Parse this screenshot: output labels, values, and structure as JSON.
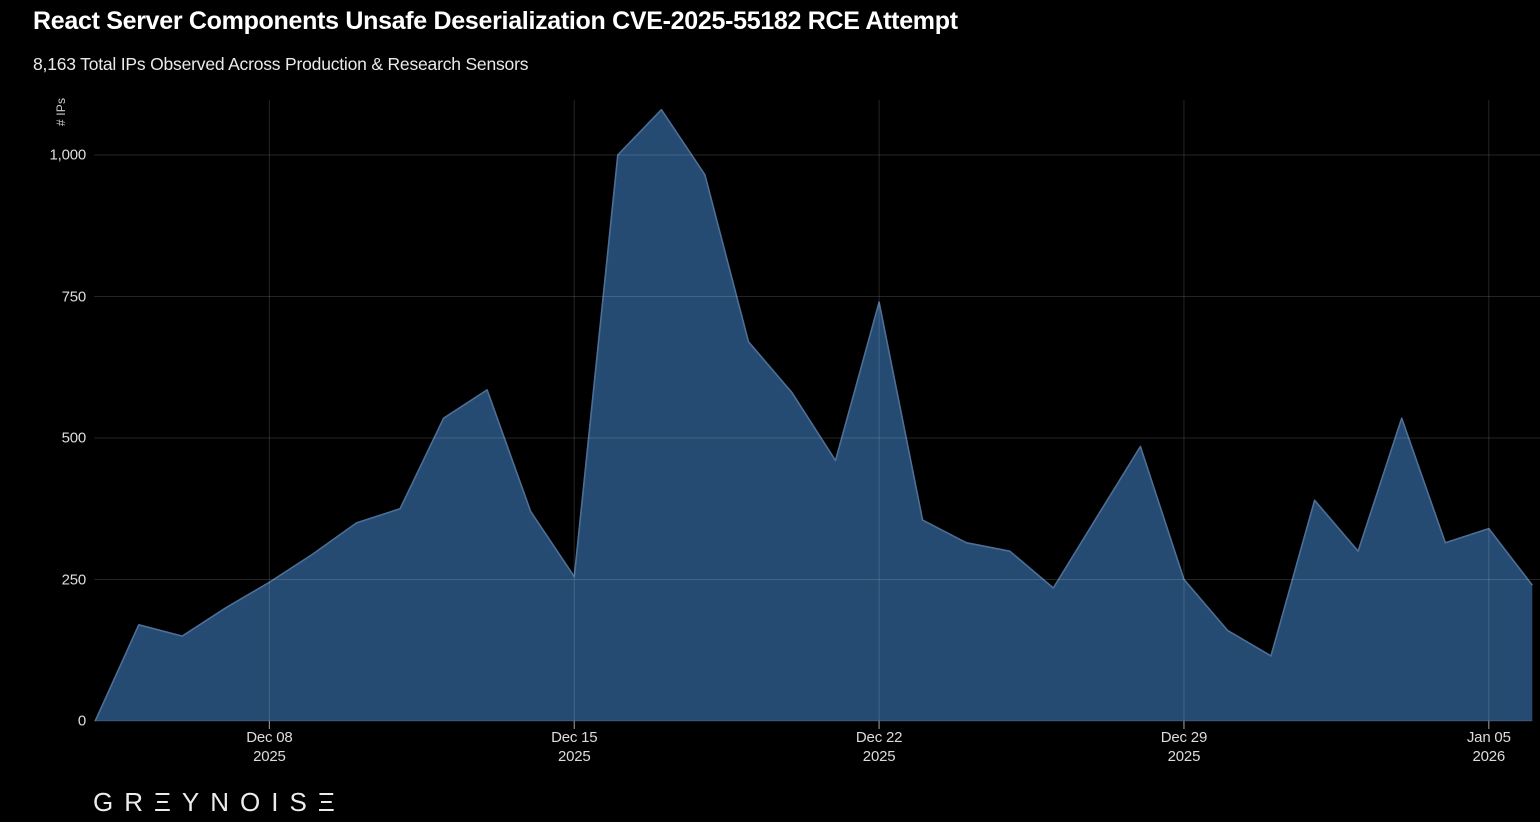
{
  "header": {
    "title": "React Server Components Unsafe Deserialization CVE-2025-55182 RCE Attempt",
    "subtitle": "8,163 Total IPs Observed Across Production & Research Sensors"
  },
  "chart_data": {
    "type": "area",
    "title": "React Server Components Unsafe Deserialization CVE-2025-55182 RCE Attempt",
    "subtitle": "8,163 Total IPs Observed Across Production & Research Sensors",
    "series_name": "# IPs",
    "ylabel": "# IPs",
    "xlabel": "",
    "legend": "none",
    "grid": true,
    "ylim": [
      0,
      1100
    ],
    "x": [
      "Dec 04",
      "Dec 05",
      "Dec 06",
      "Dec 07",
      "Dec 08",
      "Dec 09",
      "Dec 10",
      "Dec 11",
      "Dec 12",
      "Dec 13",
      "Dec 14",
      "Dec 15",
      "Dec 16",
      "Dec 17",
      "Dec 18",
      "Dec 19",
      "Dec 20",
      "Dec 21",
      "Dec 22",
      "Dec 23",
      "Dec 24",
      "Dec 25",
      "Dec 26",
      "Dec 27",
      "Dec 28",
      "Dec 29",
      "Dec 30",
      "Dec 31",
      "Jan 01",
      "Jan 02",
      "Jan 03",
      "Jan 04",
      "Jan 05",
      "Jan 06"
    ],
    "values": [
      0,
      170,
      150,
      200,
      245,
      295,
      350,
      375,
      535,
      585,
      370,
      255,
      1000,
      1080,
      965,
      670,
      580,
      460,
      740,
      355,
      315,
      300,
      235,
      360,
      485,
      250,
      160,
      115,
      390,
      300,
      535,
      315,
      340,
      240
    ],
    "yticks": {
      "values": [
        0,
        250,
        500,
        750,
        1000
      ],
      "labels": [
        "0",
        "250",
        "500",
        "750",
        "1,000"
      ]
    },
    "xticks": [
      {
        "index": 4,
        "line1": "Dec 08",
        "line2": "2025"
      },
      {
        "index": 11,
        "line1": "Dec 15",
        "line2": "2025"
      },
      {
        "index": 18,
        "line1": "Dec 22",
        "line2": "2025"
      },
      {
        "index": 25,
        "line1": "Dec 29",
        "line2": "2025"
      },
      {
        "index": 32,
        "line1": "Jan 05",
        "line2": "2026"
      }
    ],
    "colors": {
      "background": "#000000",
      "area_fill": "#254b73",
      "area_line": "#4d6f96",
      "grid_line": "#303030",
      "tick_mark": "#8a8a8a",
      "tick_label": "#dcdcdc",
      "title_text": "#ffffff"
    }
  },
  "footer": {
    "brand": "GREYNOISE",
    "logo_display": "GRΞYNOISΞ"
  }
}
